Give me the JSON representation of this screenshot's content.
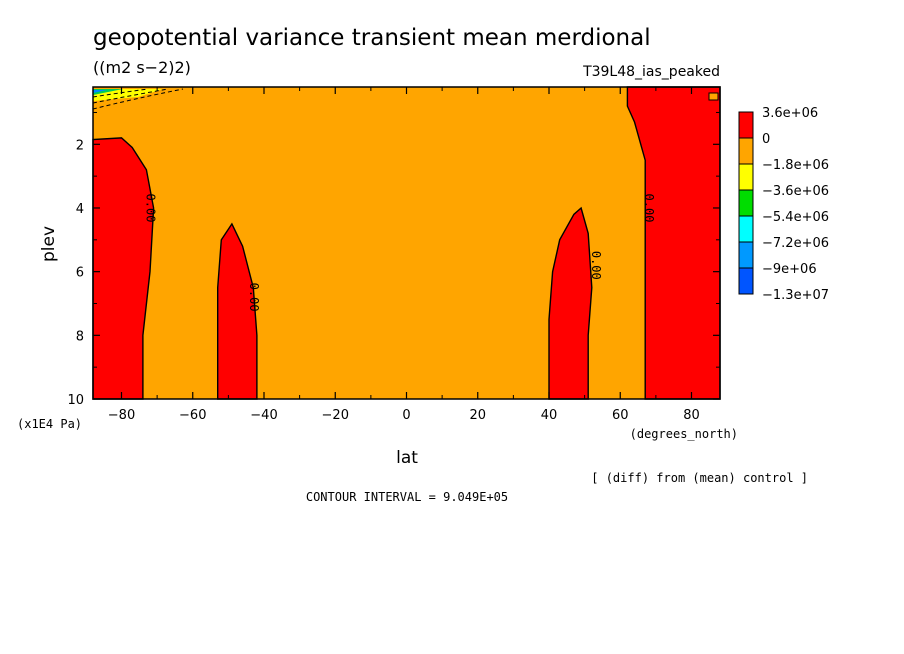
{
  "chart_data": {
    "type": "contour",
    "title": "geopotential variance transient mean merdional",
    "units": "((m2 s−2)2)",
    "run_label": "T39L48_ias_peaked",
    "xlabel": "lat",
    "x_units": "(degrees_north)",
    "ylabel": "plev",
    "y_units": "(x1E4 Pa)",
    "xlim": [
      -88,
      88
    ],
    "ylim": [
      0.2,
      10
    ],
    "y_inverted": true,
    "x_ticks": [
      -80,
      -60,
      -40,
      -20,
      0,
      20,
      40,
      60,
      80
    ],
    "x_tick_labels": [
      "−80",
      "−60",
      "−40",
      "−20",
      "0",
      "20",
      "40",
      "60",
      "80"
    ],
    "y_ticks": [
      2,
      4,
      6,
      8,
      10
    ],
    "y_tick_labels": [
      "2",
      "4",
      "6",
      "8",
      "10"
    ],
    "background_color": "#ffa500",
    "positive_color": "#ff0000",
    "contour_interval_text": "CONTOUR INTERVAL = 9.049E+05",
    "diff_note": "[ (diff) from (mean) control ]",
    "contour_label": "0.00",
    "regions": [
      {
        "name": "south-polar",
        "polygon": [
          [
            -88,
            10
          ],
          [
            -88,
            1.85
          ],
          [
            -80,
            1.8
          ],
          [
            -77,
            2.1
          ],
          [
            -73,
            2.8
          ],
          [
            -71,
            4.0
          ],
          [
            -72,
            6.0
          ],
          [
            -74,
            8.0
          ],
          [
            -74,
            10
          ]
        ]
      },
      {
        "name": "south-midlat",
        "polygon": [
          [
            -53,
            10
          ],
          [
            -53,
            6.5
          ],
          [
            -52,
            5.0
          ],
          [
            -49,
            4.5
          ],
          [
            -46,
            5.2
          ],
          [
            -43,
            6.5
          ],
          [
            -42,
            8.0
          ],
          [
            -42,
            10
          ]
        ]
      },
      {
        "name": "north-midlat",
        "polygon": [
          [
            40,
            10
          ],
          [
            40,
            7.5
          ],
          [
            41,
            6.0
          ],
          [
            43,
            5.0
          ],
          [
            47,
            4.2
          ],
          [
            49,
            4.0
          ],
          [
            51,
            4.8
          ],
          [
            52,
            6.5
          ],
          [
            51,
            8.0
          ],
          [
            51,
            10
          ]
        ]
      },
      {
        "name": "north-polar",
        "polygon": [
          [
            67,
            10
          ],
          [
            67,
            7.0
          ],
          [
            67,
            4.5
          ],
          [
            67,
            2.5
          ],
          [
            64,
            1.3
          ],
          [
            62,
            0.8
          ],
          [
            62,
            0.2
          ],
          [
            88,
            0.2
          ],
          [
            88,
            10
          ]
        ]
      }
    ],
    "contour_labels": [
      {
        "value": "0.00",
        "lat": -73,
        "plev": 4.0
      },
      {
        "value": "0.00",
        "lat": -44,
        "plev": 6.8
      },
      {
        "value": "0.00",
        "lat": 52,
        "plev": 5.8
      },
      {
        "value": "0.00",
        "lat": 67,
        "plev": 4.0
      }
    ],
    "legend": {
      "labels": [
        "3.6e+06",
        "0",
        "−1.8e+06",
        "−3.6e+06",
        "−5.4e+06",
        "−7.2e+06",
        "−9e+06",
        "−1.3e+07"
      ],
      "colors": [
        "#ff0000",
        "#ffa500",
        "#ffff00",
        "#00dd00",
        "#00ffff",
        "#0099ff",
        "#0055ff"
      ]
    }
  }
}
